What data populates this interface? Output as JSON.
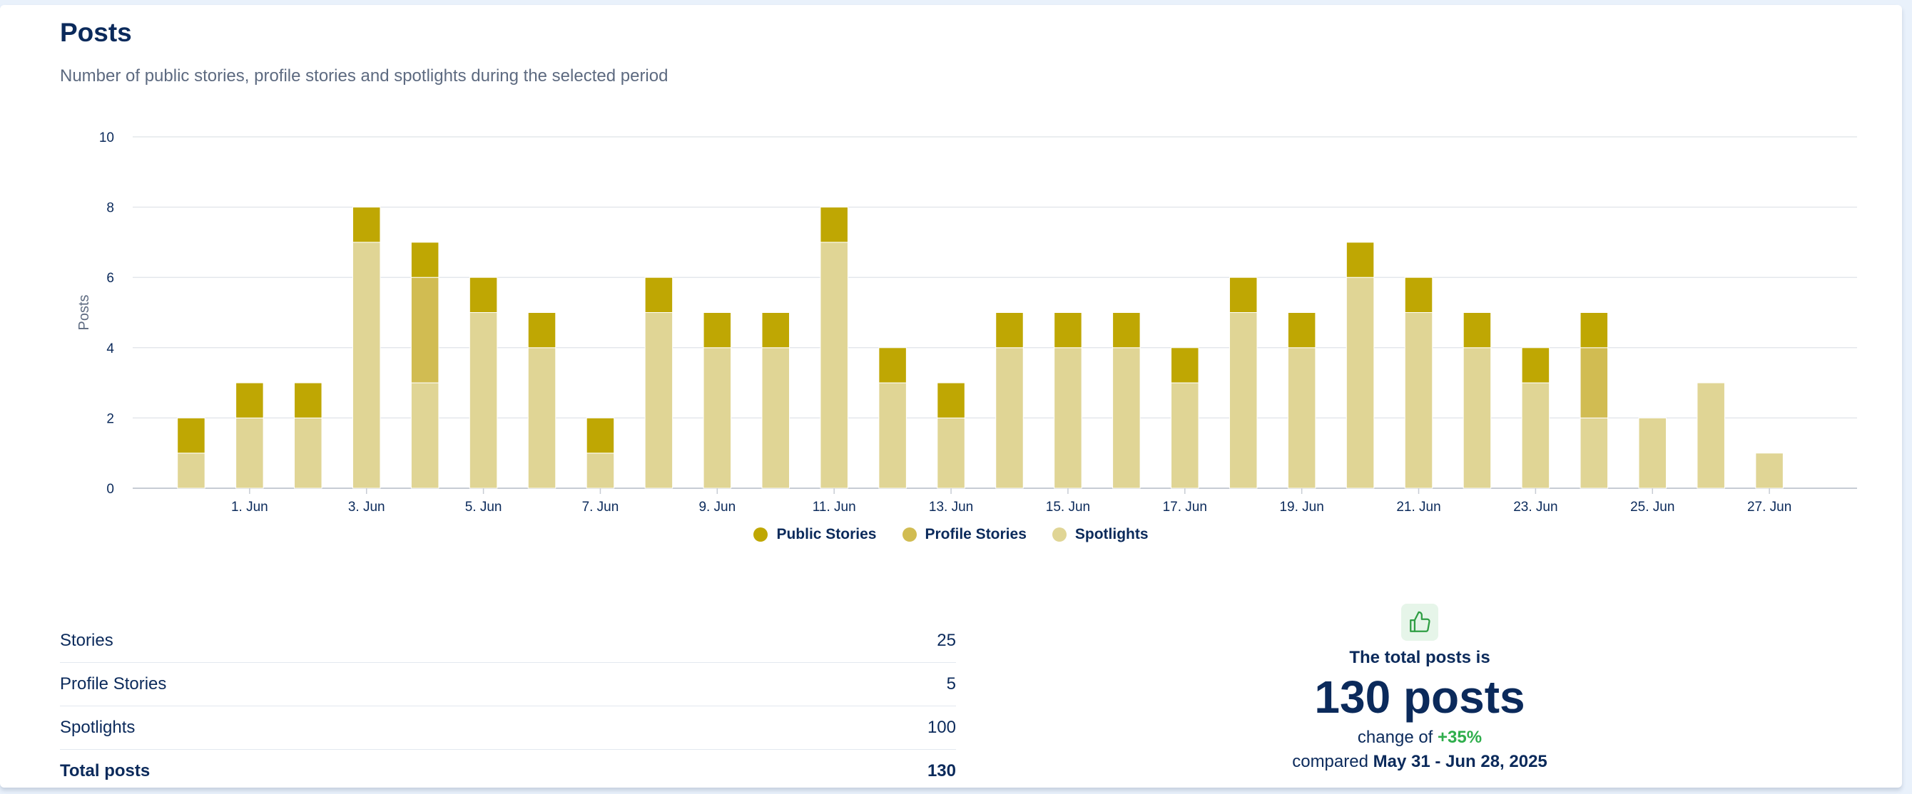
{
  "header": {
    "title": "Posts",
    "subtitle": "Number of public stories, profile stories and spotlights during the selected period"
  },
  "chart_data": {
    "type": "bar",
    "stacked": true,
    "ylabel": "Posts",
    "ylim": [
      0,
      10
    ],
    "yticks": [
      0,
      2,
      4,
      6,
      8,
      10
    ],
    "grid": true,
    "legend": "bottom-center",
    "categories": [
      "31. May",
      "1. Jun",
      "2. Jun",
      "3. Jun",
      "4. Jun",
      "5. Jun",
      "6. Jun",
      "7. Jun",
      "8. Jun",
      "9. Jun",
      "10. Jun",
      "11. Jun",
      "12. Jun",
      "13. Jun",
      "14. Jun",
      "15. Jun",
      "16. Jun",
      "17. Jun",
      "18. Jun",
      "19. Jun",
      "20. Jun",
      "21. Jun",
      "22. Jun",
      "23. Jun",
      "24. Jun",
      "25. Jun",
      "26. Jun",
      "27. Jun"
    ],
    "xtick_labels": [
      "1. Jun",
      "3. Jun",
      "5. Jun",
      "7. Jun",
      "9. Jun",
      "11. Jun",
      "13. Jun",
      "15. Jun",
      "17. Jun",
      "19. Jun",
      "21. Jun",
      "23. Jun",
      "25. Jun",
      "27. Jun"
    ],
    "series": [
      {
        "name": "Spotlights",
        "color": "#e0d595",
        "values": [
          1,
          2,
          2,
          7,
          3,
          5,
          4,
          1,
          5,
          4,
          4,
          7,
          3,
          2,
          4,
          4,
          4,
          3,
          5,
          4,
          6,
          5,
          4,
          3,
          2,
          2,
          3,
          1
        ]
      },
      {
        "name": "Profile Stories",
        "color": "#d1bc52",
        "values": [
          0,
          0,
          0,
          0,
          3,
          0,
          0,
          0,
          0,
          0,
          0,
          0,
          0,
          0,
          0,
          0,
          0,
          0,
          0,
          0,
          0,
          0,
          0,
          0,
          2,
          0,
          0,
          0
        ]
      },
      {
        "name": "Public Stories",
        "color": "#bfa703",
        "values": [
          1,
          1,
          1,
          1,
          1,
          1,
          1,
          1,
          1,
          1,
          1,
          1,
          1,
          1,
          1,
          1,
          1,
          1,
          1,
          1,
          1,
          1,
          1,
          1,
          1,
          0,
          0,
          0
        ]
      }
    ],
    "legend_order": [
      "Public Stories",
      "Profile Stories",
      "Spotlights"
    ]
  },
  "stats": [
    {
      "label": "Stories",
      "value": "25"
    },
    {
      "label": "Profile Stories",
      "value": "5"
    },
    {
      "label": "Spotlights",
      "value": "100"
    },
    {
      "label": "Total posts",
      "value": "130"
    }
  ],
  "summary": {
    "icon": "thumbs-up-icon",
    "icon_color": "#2f9e44",
    "label": "The total posts is",
    "value": "130 posts",
    "change_prefix": "change of",
    "change_value": "+35%",
    "compare_prefix": "compared",
    "compare_range": "May 31 - Jun 28, 2025"
  }
}
